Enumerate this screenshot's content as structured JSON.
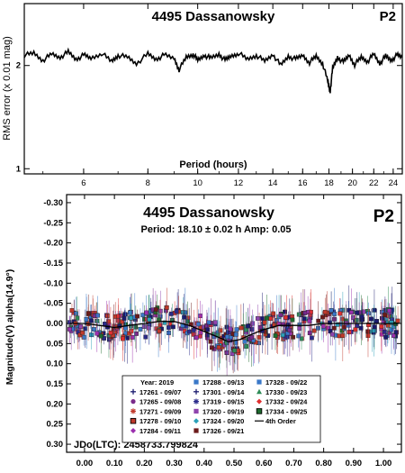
{
  "chart_data": [
    {
      "type": "line",
      "title": "4495 Dassanowsky",
      "badge": "P2",
      "xlabel": "Period (hours)",
      "ylabel": "RMS error (x 0.01 mag)",
      "x_scale": "log",
      "xlim": [
        4.6,
        25
      ],
      "ylim": [
        0.95,
        2.6
      ],
      "x_ticks": [
        6,
        8,
        10,
        12,
        14,
        16,
        18,
        20,
        22,
        24
      ],
      "y_ticks": [
        1,
        2
      ],
      "grid": false,
      "x": [
        4.6,
        4.8,
        5.0,
        5.2,
        5.4,
        5.6,
        5.8,
        6.0,
        6.2,
        6.5,
        6.8,
        7.0,
        7.3,
        7.6,
        8.0,
        8.3,
        8.6,
        9.0,
        9.2,
        9.5,
        9.8,
        10.0,
        10.3,
        10.6,
        11.0,
        11.3,
        11.6,
        12.0,
        12.5,
        13.0,
        13.5,
        14.0,
        14.5,
        15.0,
        15.5,
        16.0,
        16.5,
        17.0,
        17.5,
        17.9,
        18.1,
        18.3,
        18.7,
        19.2,
        19.7,
        20.2,
        20.8,
        21.4,
        22.0,
        22.6,
        23.2,
        23.8,
        24.4,
        25.0
      ],
      "y": [
        2.1,
        2.12,
        2.05,
        2.11,
        2.08,
        2.13,
        2.06,
        2.1,
        2.07,
        2.12,
        2.04,
        2.1,
        2.08,
        2.02,
        2.11,
        2.06,
        2.1,
        2.07,
        1.96,
        2.08,
        2.11,
        2.05,
        2.1,
        2.07,
        2.11,
        2.05,
        2.09,
        2.12,
        2.06,
        2.1,
        2.04,
        2.11,
        2.0,
        2.09,
        2.06,
        2.1,
        2.03,
        2.09,
        2.02,
        1.85,
        1.75,
        1.97,
        2.08,
        2.03,
        2.1,
        2.01,
        2.08,
        2.04,
        2.11,
        2.02,
        2.09,
        2.05,
        2.1,
        2.08
      ]
    },
    {
      "type": "scatter",
      "title": "4495 Dassanowsky",
      "badge": "P2",
      "subtitle": "Period: 18.10 ± 0.02 h   Amp: 0.05",
      "ylabel": "Magnitude(V) alpha(14.9°)",
      "xlim": [
        -0.06,
        1.06
      ],
      "ylim": [
        0.32,
        -0.32
      ],
      "x_ticks": [
        "0.00",
        "0.10",
        "0.20",
        "0.30",
        "0.40",
        "0.50",
        "0.60",
        "0.70",
        "0.80",
        "0.90",
        "1.00"
      ],
      "y_ticks": [
        "-0.30",
        "-0.25",
        "-0.20",
        "-0.15",
        "-0.10",
        "-0.05",
        "0.00",
        "0.05",
        "0.10",
        "0.15",
        "0.20",
        "0.25",
        "0.30"
      ],
      "y_tick_values": [
        -0.3,
        -0.25,
        -0.2,
        -0.15,
        -0.1,
        -0.05,
        0.0,
        0.05,
        0.1,
        0.15,
        0.2,
        0.25,
        0.3
      ],
      "jd_label": "JDo(LTC): 2458733.799824",
      "legend": {
        "position": "bottom-center",
        "header": "Year: 2019",
        "entries": [
          {
            "label": "17261 - 09/07",
            "color": "#1a1a6e",
            "marker": "plus"
          },
          {
            "label": "17265 - 09/08",
            "color": "#7a2a8a",
            "marker": "circle"
          },
          {
            "label": "17271 - 09/09",
            "color": "#c0392b",
            "marker": "star"
          },
          {
            "label": "17278 - 09/10",
            "color": "#c0392b",
            "marker": "square-outline"
          },
          {
            "label": "17284 - 09/11",
            "color": "#9b2fae",
            "marker": "diamond"
          },
          {
            "label": "17288 - 09/13",
            "color": "#3a78c8",
            "marker": "square"
          },
          {
            "label": "17301 - 09/14",
            "color": "#1a1a6e",
            "marker": "plus"
          },
          {
            "label": "17319 - 09/15",
            "color": "#2b2b8a",
            "marker": "asterisk"
          },
          {
            "label": "17320 - 09/19",
            "color": "#8e44ad",
            "marker": "square"
          },
          {
            "label": "17324 - 09/20",
            "color": "#2aa0b8",
            "marker": "diamond"
          },
          {
            "label": "17326 - 09/21",
            "color": "#6b1a1a",
            "marker": "square"
          },
          {
            "label": "17328 - 09/22",
            "color": "#3a78c8",
            "marker": "square"
          },
          {
            "label": "17330 - 09/23",
            "color": "#2e8b57",
            "marker": "triangle"
          },
          {
            "label": "17332 - 09/24",
            "color": "#e03030",
            "marker": "diamond"
          },
          {
            "label": "17334 - 09/25",
            "color": "#1e6b2e",
            "marker": "square-outline"
          },
          {
            "label": "4th Order",
            "color": "#000000",
            "marker": "line"
          }
        ]
      },
      "fit_curve": {
        "x": [
          -0.05,
          0.0,
          0.05,
          0.1,
          0.15,
          0.2,
          0.25,
          0.3,
          0.35,
          0.4,
          0.45,
          0.48,
          0.52,
          0.55,
          0.6,
          0.65,
          0.7,
          0.75,
          0.8,
          0.85,
          0.9,
          0.95,
          1.0,
          1.05
        ],
        "y": [
          0.0,
          0.0,
          0.005,
          0.01,
          0.005,
          0.0,
          -0.005,
          -0.005,
          0.005,
          0.02,
          0.035,
          0.045,
          0.04,
          0.03,
          0.015,
          0.005,
          0.005,
          0.005,
          0.0,
          0.0,
          0.0,
          0.0,
          0.0,
          0.0
        ]
      }
    }
  ]
}
